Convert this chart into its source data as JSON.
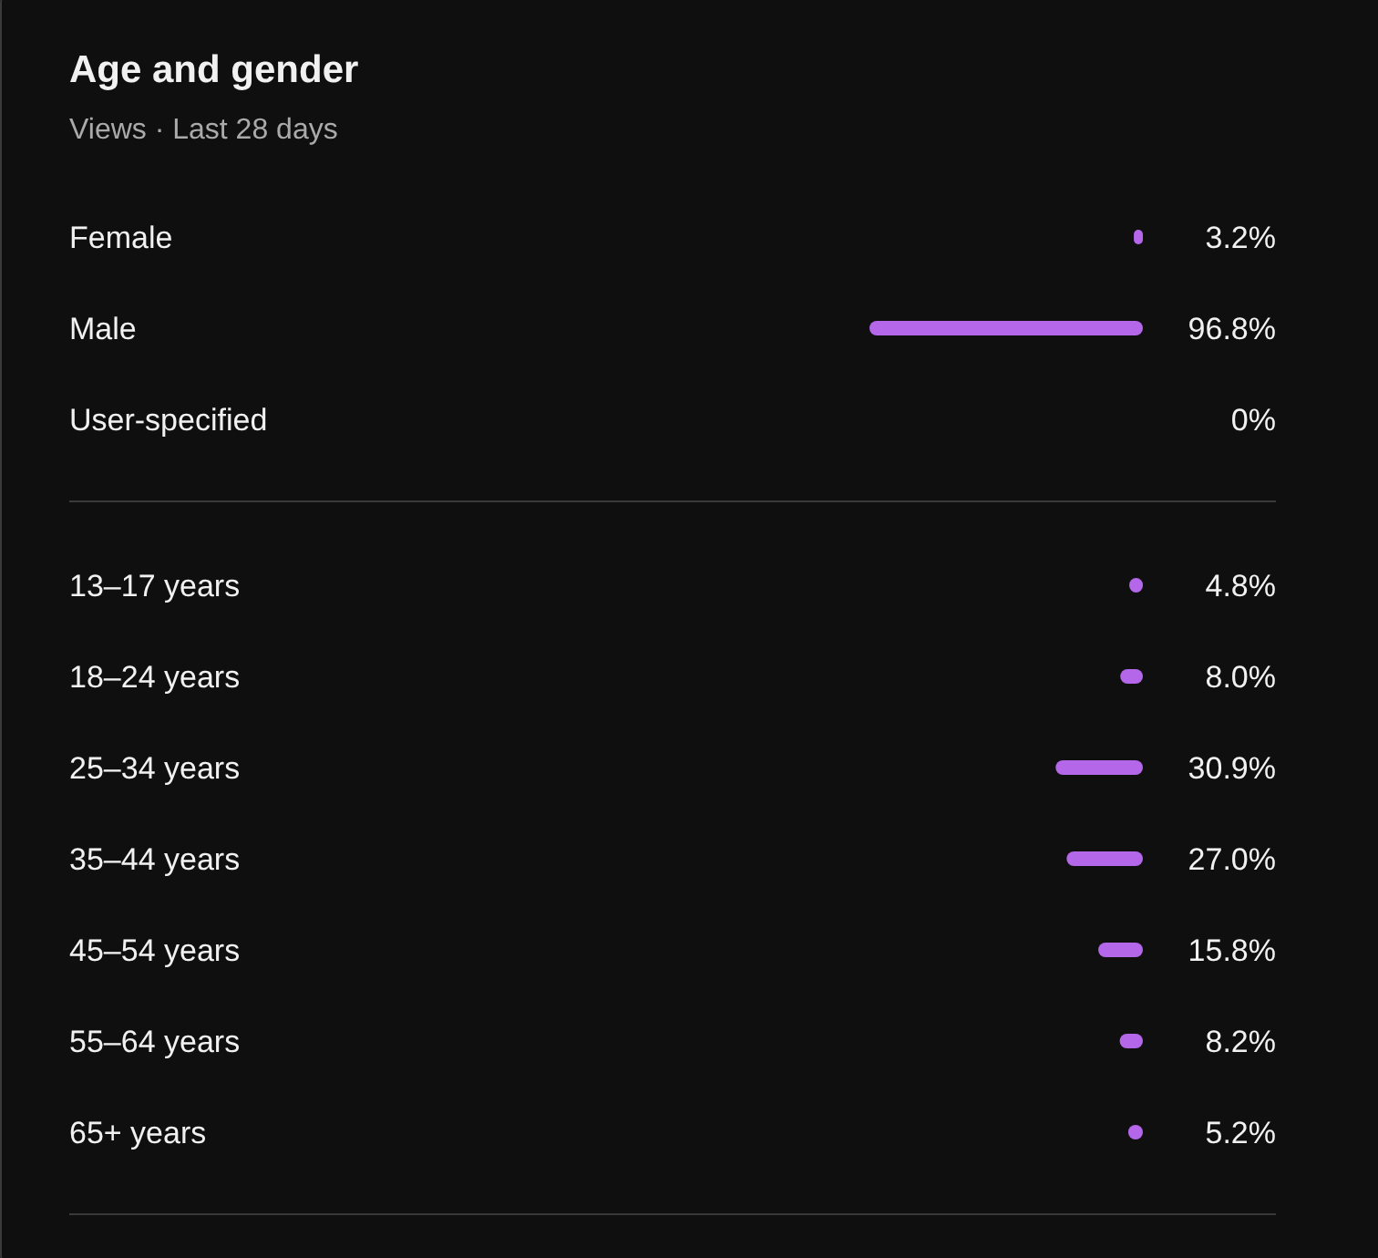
{
  "chart_data": {
    "type": "bar",
    "title": "Age and gender",
    "subtitle": "Views · Last 28 days",
    "orientation": "horizontal",
    "categories": [
      "Female",
      "Male",
      "User-specified",
      null,
      "13–17 years",
      "18–24 years",
      "25–34 years",
      "35–44 years",
      "45–54 years",
      "55–64 years",
      "65+ years"
    ],
    "values": [
      3.2,
      96.8,
      0,
      null,
      4.8,
      8.0,
      30.9,
      27.0,
      15.8,
      8.2,
      5.2
    ],
    "value_labels": [
      "3.2%",
      "96.8%",
      "0%",
      null,
      "4.8%",
      "8.0%",
      "30.9%",
      "27.0%",
      "15.8%",
      "8.2%",
      "5.2%"
    ],
    "color": "#b467e9"
  }
}
